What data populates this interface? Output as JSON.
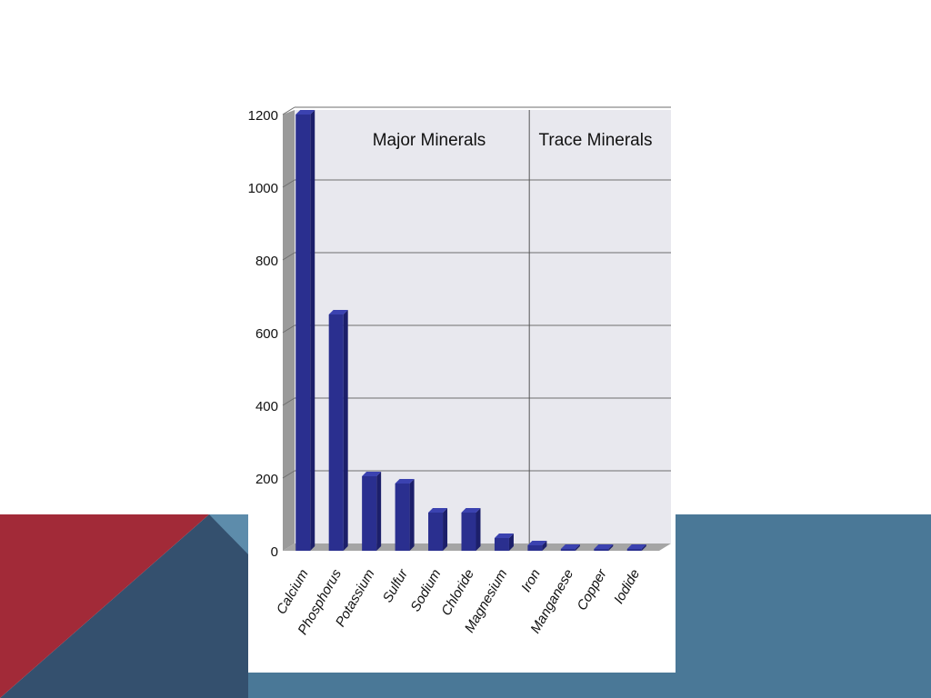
{
  "slide": {
    "colors": {
      "background": "#ffffff",
      "red": "#a22a38",
      "navy": "#34506e",
      "steel": "#4a7897",
      "light_steel": "#5d8cab"
    }
  },
  "chart_data": {
    "type": "bar",
    "title": "",
    "xlabel": "",
    "ylabel": "",
    "ylim": [
      0,
      1200
    ],
    "yticks": [
      "0",
      "200",
      "400",
      "600",
      "800",
      "1000",
      "1200"
    ],
    "grid": true,
    "categories": [
      "Calcium",
      "Phosphorus",
      "Potassium",
      "Sulfur",
      "Sodium",
      "Chloride",
      "Magnesium",
      "Iron",
      "Manganese",
      "Copper",
      "Iodide"
    ],
    "series": [
      {
        "values": [
          1200,
          650,
          205,
          185,
          105,
          105,
          35,
          15,
          5,
          5,
          5
        ],
        "color": "#2a2f8f"
      }
    ],
    "annotations": [
      "Major Minerals",
      "Trace Minerals"
    ]
  }
}
